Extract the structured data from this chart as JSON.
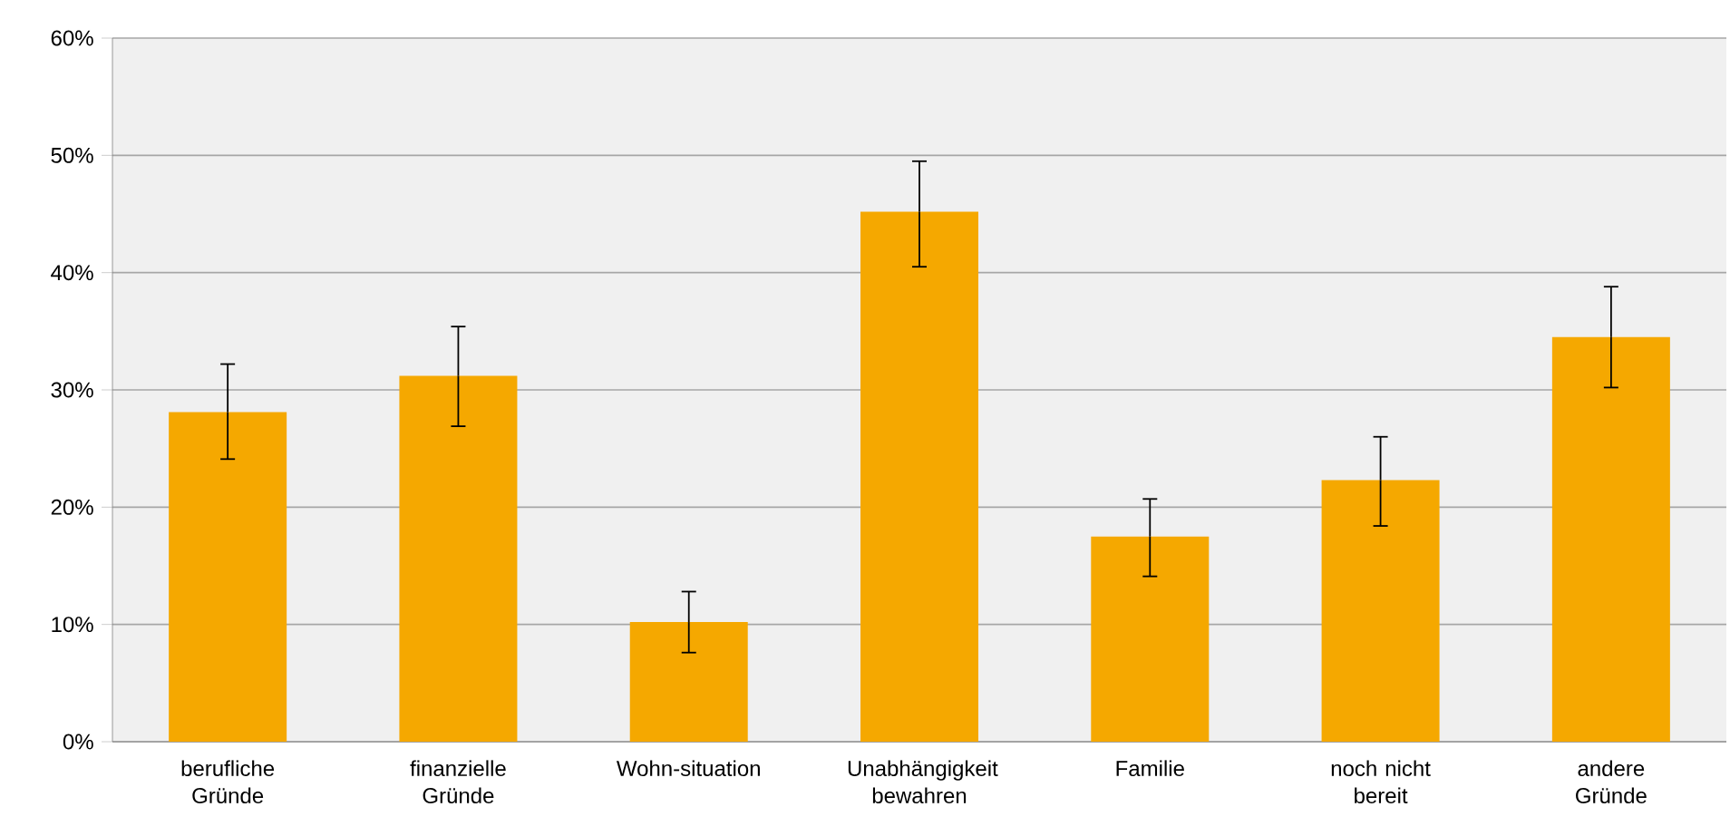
{
  "chart_data": {
    "type": "bar",
    "categories": [
      "berufliche Gründe",
      "finanzielle Gründe",
      "Wohn-situation",
      "Unabhängigkeit bewahren",
      "Familie",
      "noch nicht bereit",
      "andere Gründe"
    ],
    "values": [
      28.1,
      31.2,
      10.2,
      45.2,
      17.5,
      22.3,
      34.5
    ],
    "errors": [
      [
        24.1,
        32.2
      ],
      [
        26.9,
        35.4
      ],
      [
        7.6,
        12.8
      ],
      [
        40.5,
        49.5
      ],
      [
        14.1,
        20.7
      ],
      [
        18.4,
        26.0
      ],
      [
        30.2,
        38.8
      ]
    ],
    "color": "#f5a800",
    "ylim": [
      0,
      60
    ],
    "yticks": [
      {
        "value": 0,
        "label": "0%"
      },
      {
        "value": 10,
        "label": "10%"
      },
      {
        "value": 20,
        "label": "20%"
      },
      {
        "value": 30,
        "label": "30%"
      },
      {
        "value": 40,
        "label": "40%"
      },
      {
        "value": 50,
        "label": "50%"
      },
      {
        "value": 60,
        "label": "60%"
      }
    ],
    "grid": "y"
  }
}
